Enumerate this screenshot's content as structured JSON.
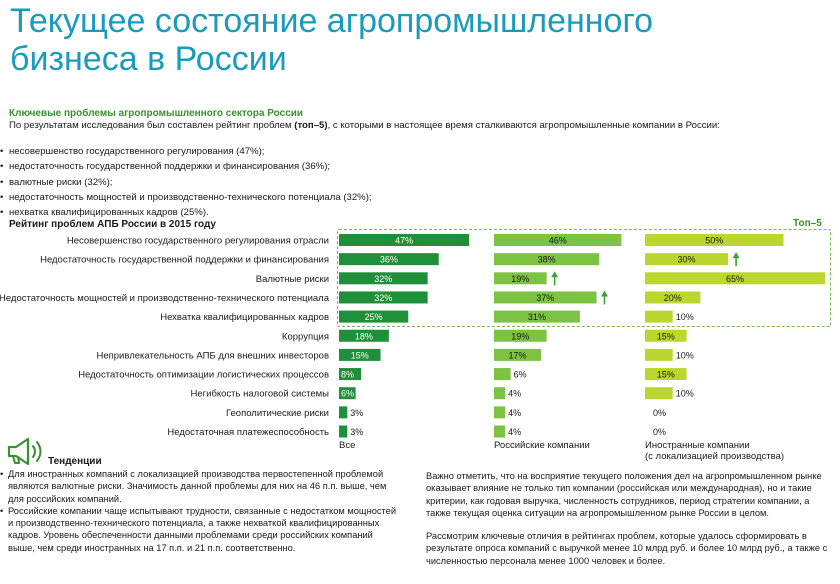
{
  "page": {
    "title_line1": "Текущее состояние агропромышленного",
    "title_line2": "бизнеса в России",
    "section_heading": "Ключевые проблемы агропромышленного сектора России",
    "intro_pre": "По результатам исследования был составлен рейтинг проблем ",
    "intro_bold": "(топ–5)",
    "intro_post": ", с которыми в настоящее время сталкиваются агропромышленные компании в России:",
    "bullets": [
      "несовершенство государственного регулирования (47%);",
      "недостаточность государственной поддержки и финансирования (36%);",
      "валютные риски (32%);",
      "недостаточность мощностей и производственно-технического потенциала (32%);",
      "нехватка квалифицированных кадров (25%)."
    ],
    "trends_heading": "Тенденции",
    "trends": [
      "Для иностранных компаний с локализацией производства первостепенной проблемой являются валютные риски. Значимость данной проблемы для них на 46 п.п. выше, чем для российских компаний.",
      "Российские компании чаще испытывают трудности, связанные с недостатком мощностей и производственно-технического потенциала, а также нехваткой квалифицированных кадров. Уровень обеспеченности данными проблемами среди российских компаний выше, чем среди иностранных на 17 п.п. и 21 п.п. соответственно."
    ],
    "right_paragraphs": [
      "Важно отметить, что на восприятие текущего положения дел на агропромышленном рынке оказывает влияние не только тип компании (российская или международная), но и такие критерии, как годовая выручка, численность сотрудников, период стратегии компании, а также текущая оценка ситуации на агропромышленном рынке России в целом.",
      "Рассмотрим ключевые отличия в рейтингах проблем, которые удалось сформировать в результате опроса компаний с выручкой менее 10 млрд руб. и более 10 млрд руб., а также с численностью персонала менее 1000 человек и более."
    ]
  },
  "colors": {
    "title": "#1a9bbc",
    "accent": "#3a8f2f",
    "series_all": "#1f8f3a",
    "series_russian": "#7cc243",
    "series_foreign": "#bcd630",
    "arrow": "#3aa535"
  },
  "chart_data": {
    "type": "bar",
    "title": "Рейтинг проблем АПБ России в 2015 году",
    "top5_label": "Топ–5",
    "value_axis": [
      0,
      100
    ],
    "categories": [
      "Несовершенство государственного регулирования отрасли",
      "Недостаточность государственной поддержки и финансирования",
      "Валютные риски",
      "Недостаточность мощностей и производственно-технического потенциала",
      "Нехватка квалифицированных кадров",
      "Коррупция",
      "Непривлекательность АПБ для внешних инвесторов",
      "Недостаточность оптимизации логистических процессов",
      "Негибкость налоговой системы",
      "Геополитические риски",
      "Недостаточная платежеспособность"
    ],
    "series": [
      {
        "name": "Все",
        "values": [
          47,
          36,
          32,
          32,
          25,
          18,
          15,
          8,
          6,
          3,
          3
        ],
        "labels": [
          "47%",
          "36%",
          "32%",
          "32%",
          "25%",
          "18%",
          "15%",
          "8%",
          "6%",
          "3%",
          "3%"
        ]
      },
      {
        "name": "Российские компании",
        "values": [
          46,
          38,
          19,
          37,
          31,
          19,
          17,
          6,
          4,
          4,
          4
        ],
        "labels": [
          "46%",
          "38%",
          "19%",
          "37%",
          "31%",
          "19%",
          "17%",
          "6%",
          "4%",
          "4%",
          "4%"
        ],
        "rank_up": [
          2,
          3
        ]
      },
      {
        "name": "Иностранные компании\n(с локализацией производства)",
        "values": [
          50,
          30,
          65,
          20,
          10,
          15,
          10,
          15,
          10,
          0,
          0
        ],
        "labels": [
          "50%",
          "30%",
          "65%",
          "20%",
          "10%",
          "15%",
          "10%",
          "15%",
          "10%",
          "0%",
          "0%"
        ],
        "rank_up": [
          1
        ]
      }
    ]
  }
}
